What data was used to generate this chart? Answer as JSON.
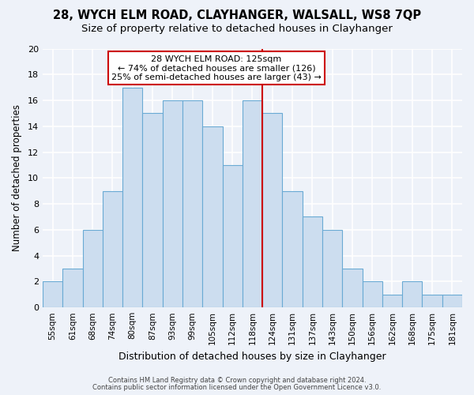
{
  "title": "28, WYCH ELM ROAD, CLAYHANGER, WALSALL, WS8 7QP",
  "subtitle": "Size of property relative to detached houses in Clayhanger",
  "xlabel": "Distribution of detached houses by size in Clayhanger",
  "ylabel": "Number of detached properties",
  "bar_labels": [
    "55sqm",
    "61sqm",
    "68sqm",
    "74sqm",
    "80sqm",
    "87sqm",
    "93sqm",
    "99sqm",
    "105sqm",
    "112sqm",
    "118sqm",
    "124sqm",
    "131sqm",
    "137sqm",
    "143sqm",
    "150sqm",
    "156sqm",
    "162sqm",
    "168sqm",
    "175sqm",
    "181sqm"
  ],
  "bar_values": [
    2,
    3,
    6,
    9,
    17,
    15,
    16,
    16,
    14,
    11,
    16,
    15,
    9,
    7,
    6,
    3,
    2,
    1,
    2,
    1,
    1
  ],
  "bar_color": "#ccddef",
  "bar_edge_color": "#6aaad4",
  "property_line_index": 11,
  "annotation_title": "28 WYCH ELM ROAD: 125sqm",
  "annotation_line1": "← 74% of detached houses are smaller (126)",
  "annotation_line2": "25% of semi-detached houses are larger (43) →",
  "annotation_box_color": "#ffffff",
  "annotation_box_edge": "#cc0000",
  "vline_color": "#cc0000",
  "ylim": [
    0,
    20
  ],
  "yticks": [
    0,
    2,
    4,
    6,
    8,
    10,
    12,
    14,
    16,
    18,
    20
  ],
  "footer1": "Contains HM Land Registry data © Crown copyright and database right 2024.",
  "footer2": "Contains public sector information licensed under the Open Government Licence v3.0.",
  "bg_color": "#eef2f9",
  "grid_color": "#ffffff",
  "title_fontsize": 10.5,
  "subtitle_fontsize": 9.5
}
